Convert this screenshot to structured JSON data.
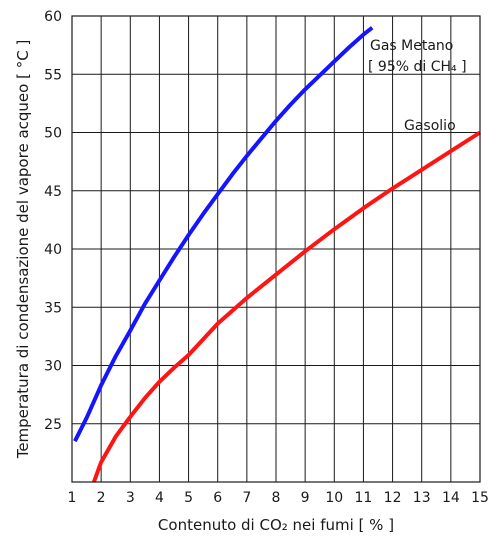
{
  "chart_data": {
    "type": "line",
    "xlabel": "Contenuto di CO₂ nei fumi [ % ]",
    "ylabel": "Temperatura di condensazione del vapore acqueo [ °C ]",
    "xlim": [
      1,
      15
    ],
    "ylim": [
      20,
      60
    ],
    "xticks": [
      "1",
      "2",
      "3",
      "4",
      "5",
      "6",
      "7",
      "8",
      "9",
      "10",
      "11",
      "12",
      "13",
      "14",
      "15"
    ],
    "yticks": [
      "25",
      "30",
      "35",
      "40",
      "45",
      "50",
      "55",
      "60"
    ],
    "grid": true,
    "series": [
      {
        "name": "Gas Metano",
        "subtitle": "[ 95% di CH₄ ]",
        "color": "#1414ff",
        "x": [
          1.1,
          1.5,
          2,
          2.5,
          3,
          3.5,
          4,
          4.5,
          5,
          5.5,
          6,
          6.5,
          7,
          7.5,
          8,
          8.5,
          9,
          9.5,
          10,
          10.5,
          11,
          11.3
        ],
        "y": [
          23.5,
          25.5,
          28.3,
          30.8,
          33,
          35.3,
          37.3,
          39.3,
          41.2,
          43,
          44.7,
          46.4,
          48,
          49.5,
          51,
          52.4,
          53.7,
          54.9,
          56.1,
          57.3,
          58.4,
          59
        ]
      },
      {
        "name": "Gasolio",
        "color": "#ff1414",
        "x": [
          1.75,
          2,
          2.5,
          3,
          3.5,
          4,
          4.5,
          5,
          6,
          7,
          8,
          9,
          10,
          11,
          12,
          13,
          14,
          15
        ],
        "y": [
          20,
          21.7,
          23.9,
          25.6,
          27.2,
          28.6,
          29.8,
          30.9,
          33.6,
          35.8,
          37.8,
          39.8,
          41.7,
          43.5,
          45.2,
          46.8,
          48.4,
          50
        ]
      }
    ]
  }
}
